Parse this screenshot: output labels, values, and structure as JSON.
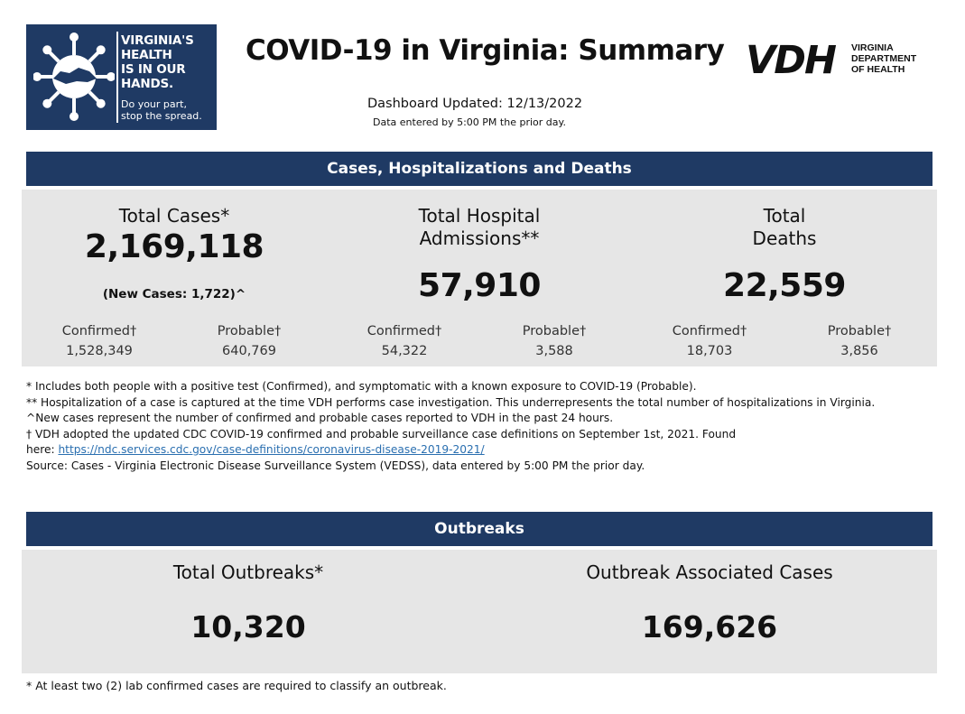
{
  "header": {
    "badge_lines": [
      "VIRGINIA'S",
      "HEALTH",
      "IS IN OUR",
      "HANDS."
    ],
    "badge_sub_lines": [
      "Do your part,",
      "stop the spread."
    ],
    "title": "COVID-19 in Virginia: Summary",
    "vdh_mark": "VDH",
    "vdh_text_lines": [
      "VIRGINIA",
      "DEPARTMENT",
      "OF HEALTH"
    ],
    "updated": "Dashboard Updated: 12/13/2022",
    "updated_note": "Data entered by 5:00 PM the prior day."
  },
  "cases_section": {
    "heading": "Cases, Hospitalizations and Deaths",
    "total_cases": {
      "title": "Total Cases*",
      "value": "2,169,118",
      "new_cases": "(New Cases: 1,722)^",
      "confirmed_label": "Confirmed†",
      "confirmed_value": "1,528,349",
      "probable_label": "Probable†",
      "probable_value": "640,769"
    },
    "hospital": {
      "title_line1": "Total Hospital",
      "title_line2": "Admissions**",
      "value": "57,910",
      "confirmed_label": "Confirmed†",
      "confirmed_value": "54,322",
      "probable_label": "Probable†",
      "probable_value": "3,588"
    },
    "deaths": {
      "title_line1": "Total",
      "title_line2": "Deaths",
      "value": "22,559",
      "confirmed_label": "Confirmed†",
      "confirmed_value": "18,703",
      "probable_label": "Probable†",
      "probable_value": "3,856"
    }
  },
  "footnotes": {
    "line1": "* Includes both people with a positive test (Confirmed), and symptomatic with a known exposure to COVID-19 (Probable).",
    "line2": "** Hospitalization of a case is captured at the time VDH performs case investigation. This underrepresents the total number of hospitalizations in Virginia.",
    "line3": "^New cases represent the number of confirmed and probable cases reported to VDH in the past 24 hours.",
    "line4": "† VDH adopted the updated CDC COVID-19 confirmed and probable surveillance case definitions on September 1st, 2021. Found",
    "line5_prefix": "here: ",
    "line5_link": "https://ndc.services.cdc.gov/case-definitions/coronavirus-disease-2019-2021/",
    "line6": "Source:  Cases - Virginia Electronic Disease Surveillance System (VEDSS), data entered by 5:00 PM the prior day."
  },
  "outbreaks_section": {
    "heading": "Outbreaks",
    "total_title": "Total Outbreaks*",
    "total_value": "10,320",
    "assoc_title": "Outbreak Associated Cases",
    "assoc_value": "169,626",
    "note": "* At least two (2) lab confirmed cases are required to classify an outbreak."
  },
  "colors": {
    "navy": "#1f3a64",
    "panel": "#e6e6e6",
    "link": "#2a6fb0"
  }
}
